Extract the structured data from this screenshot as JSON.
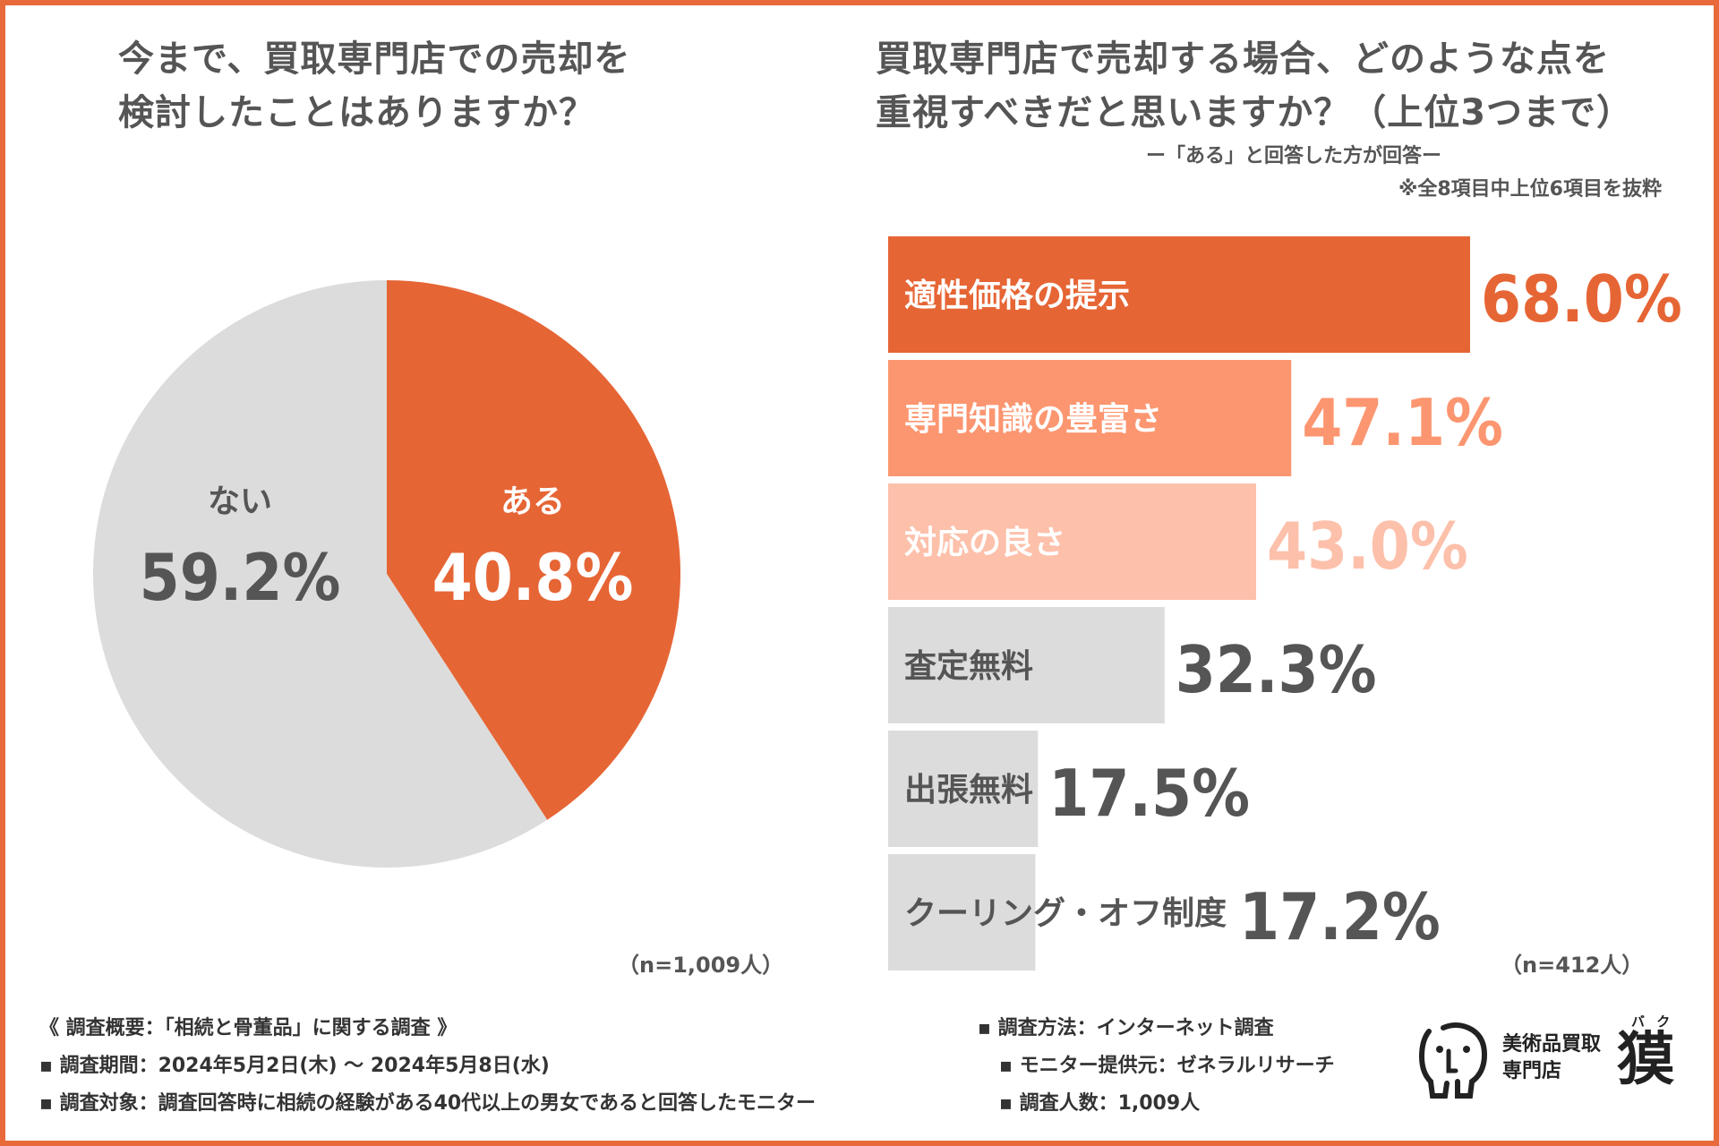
{
  "left": {
    "title_line1": "今まで、買取専門店での売却を",
    "title_line2": "検討したことはありますか？",
    "n_label": "（n=1,009人）"
  },
  "right": {
    "title_line1": "買取専門店で売却する場合、どのような点を",
    "title_line2": "重視すべきだと思いますか？（上位3つまで）",
    "subtitle": "ー「ある」と回答した方が回答ー",
    "note": "※全8項目中上位6項目を抜粋",
    "n_label": "（n=412人）"
  },
  "chart_data": [
    {
      "type": "pie",
      "title": "今まで、買取専門店での売却を検討したことはありますか？",
      "slices": [
        {
          "label": "ある",
          "value": 40.8,
          "value_label": "40.8%",
          "color": "#E66535",
          "text_color": "#FFFFFF"
        },
        {
          "label": "ない",
          "value": 59.2,
          "value_label": "59.2%",
          "color": "#DCDCDC",
          "text_color": "#555555"
        }
      ]
    },
    {
      "type": "bar",
      "orientation": "horizontal",
      "title": "買取専門店で売却する場合、どのような点を重視すべきだと思いますか？（上位3つまで）",
      "xlim": [
        0,
        100
      ],
      "bars": [
        {
          "category": "適性価格の提示",
          "value": 68.0,
          "value_label": "68.0%",
          "color": "#E66535",
          "label_color": "#FFFFFF",
          "value_color": "#E66535"
        },
        {
          "category": "専門知識の豊富さ",
          "value": 47.1,
          "value_label": "47.1%",
          "color": "#FC9670",
          "label_color": "#FFFFFF",
          "value_color": "#FC9670"
        },
        {
          "category": "対応の良さ",
          "value": 43.0,
          "value_label": "43.0%",
          "color": "#FDC0AA",
          "label_color": "#FFFFFF",
          "value_color": "#FDC0AA"
        },
        {
          "category": "査定無料",
          "value": 32.3,
          "value_label": "32.3%",
          "color": "#DCDCDC",
          "label_color": "#555555",
          "value_color": "#555555"
        },
        {
          "category": "出張無料",
          "value": 17.5,
          "value_label": "17.5%",
          "color": "#DCDCDC",
          "label_color": "#555555",
          "value_color": "#555555"
        },
        {
          "category": "クーリング・オフ制度",
          "value": 17.2,
          "value_label": "17.2%",
          "color": "#DCDCDC",
          "label_color": "#555555",
          "value_color": "#555555"
        }
      ]
    }
  ],
  "footer": {
    "overview": "《 調査概要：「相続と骨董品」に関する調査 》",
    "period": "▪ 調査期間：2024年5月2日(木) 〜 2024年5月8日(水)",
    "target": "▪ 調査対象：調査回答時に相続の経験がある40代以上の男女であると回答したモニター",
    "method": "▪ 調査方法：インターネット調査",
    "provider": "▪ モニター提供元：ゼネラルリサーチ",
    "count": "▪ 調査人数：1,009人"
  },
  "logo": {
    "line1": "美術品買取",
    "line2": "専門店",
    "kanji": "獏",
    "ruby": "バ ク"
  }
}
